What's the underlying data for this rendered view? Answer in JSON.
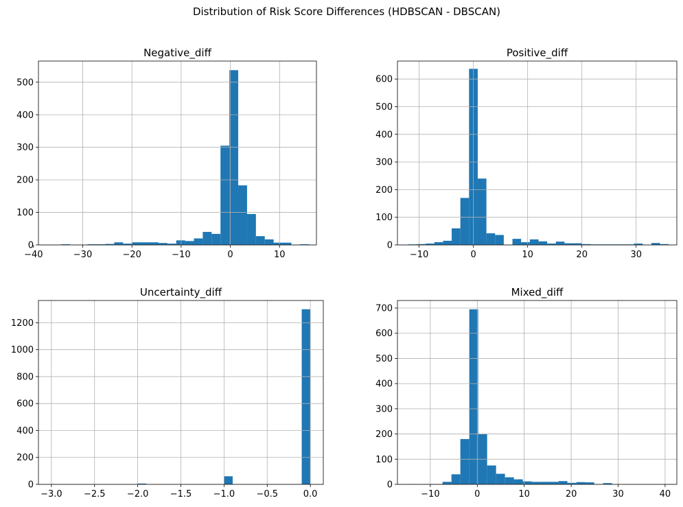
{
  "figure": {
    "title": "Distribution of Risk Score Differences (HDBSCAN - DBSCAN)",
    "bar_color": "#1f77b4"
  },
  "chart_data": [
    {
      "type": "bar",
      "title": "Negative_diff",
      "xlabel": "",
      "ylabel": "",
      "xlim": [
        -39,
        17.5
      ],
      "ylim": [
        0,
        565
      ],
      "grid": true,
      "xticks": [
        -40,
        -30,
        -20,
        -10,
        0,
        10
      ],
      "yticks": [
        0,
        100,
        200,
        300,
        400,
        500
      ],
      "bin_edges": [
        -38,
        -36.2,
        -34.4,
        -32.6,
        -30.8,
        -29,
        -27.2,
        -25.4,
        -23.6,
        -21.8,
        -20,
        -18.2,
        -16.4,
        -14.6,
        -12.8,
        -11,
        -9.2,
        -7.4,
        -5.6,
        -3.8,
        -2,
        -0.2,
        1.6,
        3.4,
        5.2,
        7,
        8.8,
        10.6,
        12.4,
        14.2,
        16
      ],
      "values": [
        1,
        0,
        2,
        0,
        1,
        2,
        2,
        3,
        8,
        4,
        8,
        8,
        8,
        6,
        4,
        14,
        12,
        20,
        40,
        34,
        305,
        537,
        183,
        95,
        27,
        17,
        7,
        7,
        1,
        2
      ]
    },
    {
      "type": "bar",
      "title": "Positive_diff",
      "xlabel": "",
      "ylabel": "",
      "xlim": [
        -14,
        37.5
      ],
      "ylim": [
        0,
        665
      ],
      "grid": true,
      "xticks": [
        -10,
        0,
        10,
        20,
        30
      ],
      "yticks": [
        0,
        100,
        200,
        300,
        400,
        500,
        600
      ],
      "bin_edges": [
        -12,
        -10.4,
        -8.8,
        -7.2,
        -5.6,
        -4,
        -2.4,
        -0.8,
        0.8,
        2.4,
        4,
        5.6,
        7.2,
        8.8,
        10.4,
        12,
        13.6,
        15.2,
        16.8,
        18.4,
        20,
        21.6,
        23.2,
        24.8,
        26.4,
        28,
        29.6,
        31.2,
        32.8,
        34.4,
        36
      ],
      "values": [
        2,
        3,
        5,
        10,
        15,
        60,
        170,
        637,
        240,
        42,
        36,
        0,
        22,
        10,
        20,
        13,
        5,
        12,
        6,
        6,
        3,
        2,
        2,
        2,
        2,
        2,
        5,
        0,
        7,
        3
      ]
    },
    {
      "type": "bar",
      "title": "Uncertainty_diff",
      "xlabel": "",
      "ylabel": "",
      "xlim": [
        -3.15,
        0.15
      ],
      "ylim": [
        0,
        1365
      ],
      "grid": true,
      "xticks": [
        -3.0,
        -2.5,
        -2.0,
        -1.5,
        -1.0,
        -0.5,
        0.0
      ],
      "yticks": [
        0,
        200,
        400,
        600,
        800,
        1000,
        1200
      ],
      "bin_edges": [
        -3,
        -2.9,
        -2.8,
        -2.7,
        -2.6,
        -2.5,
        -2.4,
        -2.3,
        -2.2,
        -2.1,
        -2,
        -1.9,
        -1.8,
        -1.7,
        -1.6,
        -1.5,
        -1.4,
        -1.3,
        -1.2,
        -1.1,
        -1,
        -0.9,
        -0.8,
        -0.7,
        -0.6,
        -0.5,
        -0.4,
        -0.3,
        -0.2,
        -0.1,
        0
      ],
      "values": [
        1,
        0,
        0,
        0,
        0,
        0,
        0,
        0,
        0,
        0,
        6,
        0,
        0,
        0,
        0,
        0,
        0,
        0,
        0,
        0,
        60,
        0,
        0,
        0,
        0,
        0,
        0,
        0,
        0,
        1300
      ]
    },
    {
      "type": "bar",
      "title": "Mixed_diff",
      "xlabel": "",
      "ylabel": "",
      "xlim": [
        -17,
        42.5
      ],
      "ylim": [
        0,
        730
      ],
      "grid": true,
      "xticks": [
        -10,
        0,
        10,
        20,
        30,
        40
      ],
      "yticks": [
        0,
        100,
        200,
        300,
        400,
        500,
        600,
        700
      ],
      "bin_edges": [
        -15,
        -13.1,
        -11.2,
        -9.3,
        -7.4,
        -5.5,
        -3.6,
        -1.7,
        0.2,
        2.1,
        4,
        5.9,
        7.8,
        9.7,
        11.6,
        13.5,
        15.4,
        17.3,
        19.2,
        21.1,
        23,
        24.9,
        26.8,
        28.7,
        30.6,
        32.5,
        34.4,
        36.3,
        38.2,
        40.1,
        42
      ],
      "values": [
        1,
        0,
        1,
        1,
        10,
        40,
        180,
        695,
        200,
        75,
        42,
        28,
        20,
        12,
        10,
        10,
        10,
        13,
        6,
        9,
        8,
        1,
        5,
        0,
        0,
        0,
        0,
        0,
        0,
        1
      ]
    }
  ]
}
